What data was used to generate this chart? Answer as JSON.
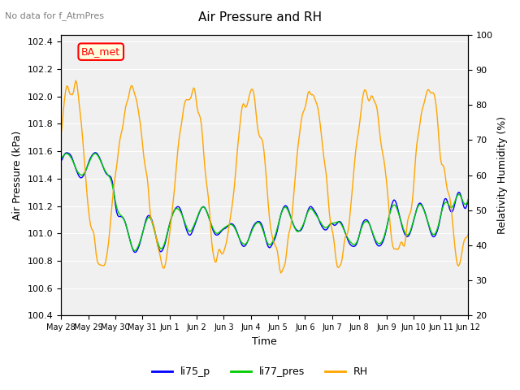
{
  "title": "Air Pressure and RH",
  "subtitle": "No data for f_AtmPres",
  "annotation": "BA_met",
  "xlabel": "Time",
  "ylabel_left": "Air Pressure (kPa)",
  "ylabel_right": "Relativity Humidity (%)",
  "ylim_left": [
    100.4,
    102.45
  ],
  "ylim_right": [
    20,
    100
  ],
  "xtick_labels": [
    "May 28",
    "May 29",
    "May 30",
    "May 31",
    "Jun 1",
    "Jun 2",
    "Jun 3",
    "Jun 4",
    "Jun 5",
    "Jun 6",
    "Jun 7",
    "Jun 8",
    "Jun 9",
    "Jun 10",
    "Jun 11",
    "Jun 12"
  ],
  "color_li75": "#0000ff",
  "color_li77": "#00cc00",
  "color_rh": "#ffa500",
  "bg_color": "#e8e8e8",
  "plot_bg_color": "#f0f0f0",
  "legend_labels": [
    "li75_p",
    "li77_pres",
    "RH"
  ]
}
